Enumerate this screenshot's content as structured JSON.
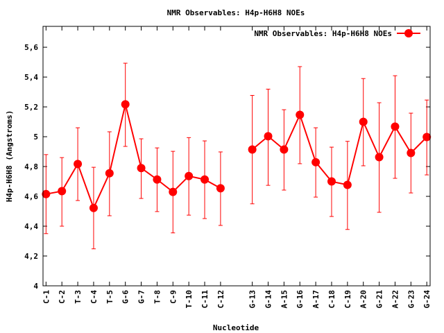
{
  "chart_data": {
    "type": "line",
    "title": "NMR Observables: H4p-H6H8 NOEs",
    "xlabel": "Nucleotide",
    "ylabel": "H4p-H6H8 (Angstroms)",
    "ylim": [
      4,
      5.74
    ],
    "yticks": [
      4,
      4.2,
      4.4,
      4.6,
      4.8,
      5,
      5.2,
      5.4,
      5.6
    ],
    "ytick_labels": [
      "4",
      "4,2",
      "4,4",
      "4,6",
      "4,8",
      "5",
      "5,2",
      "5,4",
      "5,6"
    ],
    "grid": false,
    "legend_position": "top-right",
    "series": [
      {
        "name": "NMR Observables: H4p-H6H8 NOEs",
        "color": "#ff0000",
        "segments": [
          {
            "categories": [
              "C-1",
              "C-2",
              "T-3",
              "C-4",
              "T-5",
              "G-6",
              "G-7",
              "T-8",
              "C-9",
              "T-10",
              "C-11",
              "C-12"
            ],
            "positions": [
              0,
              1,
              2,
              3,
              4,
              5,
              6,
              7,
              8,
              9,
              10,
              11
            ],
            "values": [
              4.615,
              4.635,
              4.817,
              4.522,
              4.755,
              5.217,
              4.79,
              4.713,
              4.63,
              4.736,
              4.713,
              4.654
            ],
            "err_low": [
              4.35,
              4.4,
              4.572,
              4.248,
              4.47,
              4.935,
              4.586,
              4.498,
              4.355,
              4.474,
              4.451,
              4.405
            ],
            "err_high": [
              4.88,
              4.86,
              5.06,
              4.795,
              5.033,
              5.493,
              4.986,
              4.925,
              4.902,
              4.994,
              4.972,
              4.898
            ]
          },
          {
            "categories": [
              "G-13",
              "G-14",
              "A-15",
              "G-16",
              "A-17",
              "C-18",
              "C-19",
              "A-20",
              "G-21",
              "A-22",
              "G-23",
              "G-24"
            ],
            "positions": [
              13,
              14,
              15,
              16,
              17,
              18,
              19,
              20,
              21,
              22,
              23,
              24
            ],
            "values": [
              4.914,
              5.003,
              4.914,
              5.147,
              4.829,
              4.7,
              4.677,
              5.1,
              4.863,
              5.068,
              4.891,
              4.998
            ],
            "err_low": [
              4.55,
              4.674,
              4.642,
              4.819,
              4.595,
              4.465,
              4.378,
              4.805,
              4.493,
              4.721,
              4.623,
              4.744
            ],
            "err_high": [
              5.277,
              5.319,
              5.181,
              5.47,
              5.06,
              4.93,
              4.969,
              5.39,
              5.228,
              5.409,
              5.158,
              5.246
            ]
          }
        ]
      }
    ],
    "xlim": [
      -0.19,
      24.21
    ]
  }
}
